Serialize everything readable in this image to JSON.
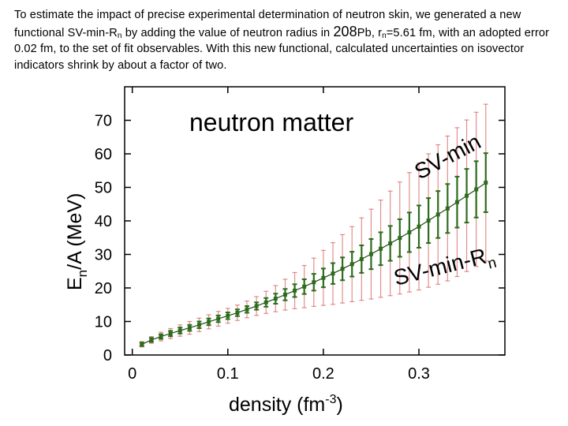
{
  "caption": {
    "p1": "To estimate the impact of precise experimental determination of neutron skin, we generated a new functional SV-min-R",
    "p1_sub": "n",
    "p2": " by adding the value of neutron radius in ",
    "p2_big": "208",
    "p3": "Pb, r",
    "p3_sub": "n",
    "p4": "=5.61 fm, with an adopted error 0.02 fm, to the  set of fit observables. With this new functional, calculated uncertainties on  isovector indicators shrink by about a factor of two."
  },
  "chart_data": {
    "type": "scatter",
    "title": "neutron matter",
    "xlabel_main": "density (fm",
    "xlabel_sup": "-3",
    "xlabel_end": ")",
    "ylabel_main": "E",
    "ylabel_sub": "n",
    "ylabel_end": "/A (MeV)",
    "xlim": [
      -0.008,
      0.39
    ],
    "ylim": [
      0,
      80
    ],
    "xticks": [
      {
        "v": 0,
        "label": "0"
      },
      {
        "v": 0.1,
        "label": "0.1"
      },
      {
        "v": 0.2,
        "label": "0.2"
      },
      {
        "v": 0.3,
        "label": "0.3"
      }
    ],
    "yticks": [
      {
        "v": 0,
        "label": "0"
      },
      {
        "v": 10,
        "label": "10"
      },
      {
        "v": 20,
        "label": "20"
      },
      {
        "v": 30,
        "label": "30"
      },
      {
        "v": 40,
        "label": "40"
      },
      {
        "v": 50,
        "label": "50"
      },
      {
        "v": 60,
        "label": "60"
      },
      {
        "v": 70,
        "label": "70"
      }
    ],
    "x": [
      0.01,
      0.02,
      0.03,
      0.04,
      0.05,
      0.06,
      0.07,
      0.08,
      0.09,
      0.1,
      0.11,
      0.12,
      0.13,
      0.14,
      0.15,
      0.16,
      0.17,
      0.18,
      0.19,
      0.2,
      0.21,
      0.22,
      0.23,
      0.24,
      0.25,
      0.26,
      0.27,
      0.28,
      0.29,
      0.3,
      0.31,
      0.32,
      0.33,
      0.34,
      0.35,
      0.36,
      0.37
    ],
    "series": [
      {
        "name": "SV-min",
        "color": "#cc3333",
        "values": [
          3.2,
          4.5,
          5.5,
          6.4,
          7.3,
          8.1,
          9.0,
          9.9,
          10.8,
          11.7,
          12.6,
          13.6,
          14.6,
          15.7,
          16.8,
          18.0,
          19.2,
          20.4,
          21.7,
          23.0,
          24.3,
          25.7,
          27.1,
          28.6,
          30.1,
          31.7,
          33.3,
          34.9,
          36.6,
          38.3,
          40.1,
          41.9,
          43.7,
          45.6,
          47.5,
          49.4,
          51.4
        ],
        "err": [
          0.8,
          1.0,
          1.3,
          1.5,
          1.7,
          1.9,
          2.0,
          2.1,
          2.2,
          2.2,
          2.3,
          2.5,
          2.8,
          3.3,
          3.9,
          4.6,
          5.4,
          6.3,
          7.2,
          8.2,
          9.2,
          10.2,
          11.2,
          12.3,
          13.4,
          14.5,
          15.6,
          16.7,
          17.8,
          18.9,
          19.9,
          20.8,
          21.6,
          22.2,
          22.6,
          23.0,
          23.4
        ]
      },
      {
        "name": "SV-min-Rn",
        "color": "#2e6b1c",
        "values": [
          3.2,
          4.5,
          5.5,
          6.4,
          7.3,
          8.1,
          9.0,
          9.9,
          10.8,
          11.7,
          12.6,
          13.6,
          14.6,
          15.7,
          16.8,
          18.0,
          19.2,
          20.4,
          21.7,
          23.0,
          24.3,
          25.7,
          27.1,
          28.6,
          30.1,
          31.7,
          33.3,
          34.9,
          36.6,
          38.3,
          40.1,
          41.9,
          43.7,
          45.6,
          47.5,
          49.4,
          51.4
        ],
        "err": [
          0.5,
          0.6,
          0.7,
          0.8,
          0.9,
          0.9,
          1.0,
          1.0,
          1.0,
          1.0,
          1.0,
          1.0,
          1.1,
          1.3,
          1.5,
          1.7,
          1.9,
          2.2,
          2.5,
          2.8,
          3.1,
          3.4,
          3.7,
          4.1,
          4.5,
          4.9,
          5.2,
          5.6,
          5.9,
          6.3,
          6.7,
          7.0,
          7.3,
          7.6,
          8.0,
          8.4,
          8.8
        ]
      }
    ],
    "annotations": [
      {
        "text": "SV-min",
        "near": "upper error band"
      },
      {
        "text": "SV-min-R",
        "sub": "n",
        "near": "lower error band"
      }
    ]
  }
}
